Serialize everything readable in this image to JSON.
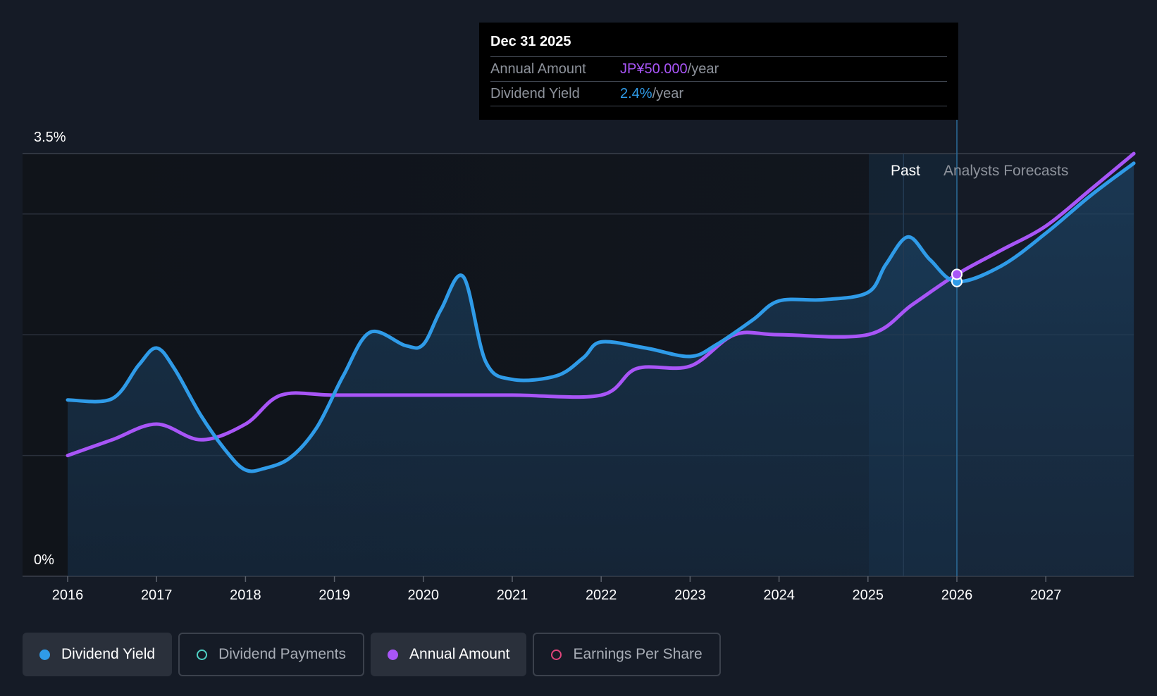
{
  "tooltip": {
    "date": "Dec 31 2025",
    "annual_label": "Annual Amount",
    "annual_value": "JP¥50.000",
    "annual_unit": "/year",
    "yield_label": "Dividend Yield",
    "yield_value": "2.4%",
    "yield_unit": "/year"
  },
  "regions": {
    "past": "Past",
    "forecast": "Analysts Forecasts"
  },
  "legend": [
    {
      "label": "Dividend Yield",
      "active": true,
      "filled": true,
      "color": "#2f9be8"
    },
    {
      "label": "Dividend Payments",
      "active": false,
      "filled": false,
      "color": "#4fd1c5"
    },
    {
      "label": "Annual Amount",
      "active": true,
      "filled": true,
      "color": "#a855f7"
    },
    {
      "label": "Earnings Per Share",
      "active": false,
      "filled": false,
      "color": "#e0457b"
    }
  ],
  "colors": {
    "background": "#151b26",
    "yield_line": "#2f9be8",
    "amount_line": "#a855f7",
    "grid": "#2a303b"
  },
  "chart_data": {
    "type": "line",
    "title": "",
    "xlabel": "",
    "ylabel": "",
    "ylim": [
      0,
      3.5
    ],
    "xlim": [
      2015.5,
      2027.99
    ],
    "y_ticks_labeled": [
      "0%",
      "3.5%"
    ],
    "x_ticks": [
      "2016",
      "2017",
      "2018",
      "2019",
      "2020",
      "2021",
      "2022",
      "2023",
      "2024",
      "2025",
      "2026",
      "2027"
    ],
    "highlight_date": 2026.0,
    "forecast_start": 2025.7,
    "series": [
      {
        "name": "Dividend Yield",
        "color": "#2f9be8",
        "unit": "%",
        "points": [
          [
            2016.0,
            1.46
          ],
          [
            2016.5,
            1.47
          ],
          [
            2016.8,
            1.75
          ],
          [
            2017.0,
            1.89
          ],
          [
            2017.2,
            1.72
          ],
          [
            2017.5,
            1.33
          ],
          [
            2017.8,
            1.02
          ],
          [
            2018.0,
            0.88
          ],
          [
            2018.2,
            0.89
          ],
          [
            2018.5,
            0.98
          ],
          [
            2018.8,
            1.23
          ],
          [
            2019.1,
            1.66
          ],
          [
            2019.4,
            2.02
          ],
          [
            2019.8,
            1.91
          ],
          [
            2020.0,
            1.92
          ],
          [
            2020.2,
            2.21
          ],
          [
            2020.45,
            2.48
          ],
          [
            2020.7,
            1.78
          ],
          [
            2021.0,
            1.63
          ],
          [
            2021.5,
            1.66
          ],
          [
            2021.8,
            1.81
          ],
          [
            2022.0,
            1.94
          ],
          [
            2022.5,
            1.89
          ],
          [
            2023.0,
            1.82
          ],
          [
            2023.3,
            1.92
          ],
          [
            2023.7,
            2.12
          ],
          [
            2024.0,
            2.28
          ],
          [
            2024.5,
            2.29
          ],
          [
            2025.0,
            2.35
          ],
          [
            2025.2,
            2.58
          ],
          [
            2025.45,
            2.81
          ],
          [
            2025.7,
            2.62
          ],
          [
            2026.0,
            2.44
          ],
          [
            2026.5,
            2.57
          ],
          [
            2027.0,
            2.84
          ],
          [
            2027.5,
            3.15
          ],
          [
            2027.99,
            3.42
          ]
        ]
      },
      {
        "name": "Annual Amount",
        "color": "#a855f7",
        "unit": "JP¥",
        "points": [
          [
            2016.0,
            1.0
          ],
          [
            2016.5,
            1.13
          ],
          [
            2017.0,
            1.26
          ],
          [
            2017.5,
            1.13
          ],
          [
            2018.0,
            1.26
          ],
          [
            2018.4,
            1.5
          ],
          [
            2019.0,
            1.5
          ],
          [
            2020.0,
            1.5
          ],
          [
            2021.0,
            1.5
          ],
          [
            2022.0,
            1.5
          ],
          [
            2022.4,
            1.72
          ],
          [
            2023.0,
            1.74
          ],
          [
            2023.5,
            2.0
          ],
          [
            2024.0,
            2.0
          ],
          [
            2025.0,
            2.0
          ],
          [
            2025.5,
            2.25
          ],
          [
            2026.0,
            2.5
          ],
          [
            2026.5,
            2.7
          ],
          [
            2027.0,
            2.9
          ],
          [
            2027.5,
            3.2
          ],
          [
            2027.99,
            3.5
          ]
        ]
      }
    ]
  }
}
